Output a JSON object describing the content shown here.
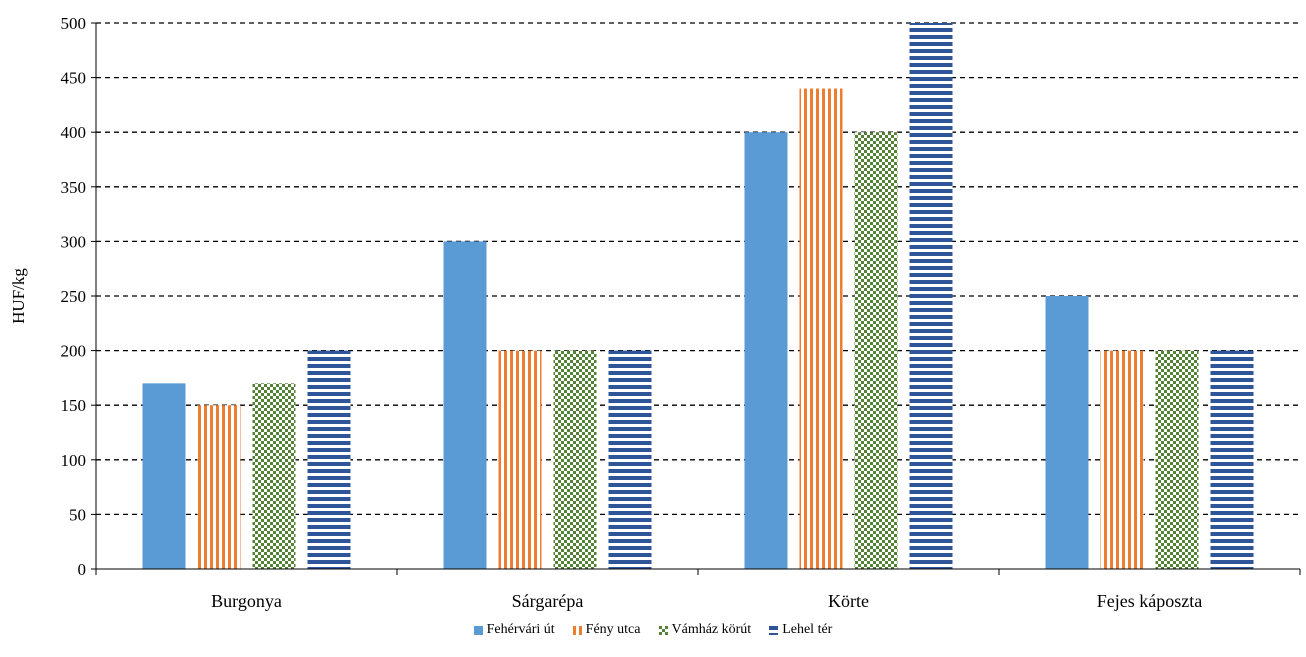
{
  "chart_data": {
    "type": "bar",
    "ylabel": "HUF/kg",
    "xlabel": "",
    "ylim": [
      0,
      500
    ],
    "yticks": [
      0,
      50,
      100,
      150,
      200,
      250,
      300,
      350,
      400,
      450,
      500
    ],
    "grid": true,
    "grid_style": "dashed",
    "legend_position": "bottom",
    "categories": [
      "Burgonya",
      "Sárgarépa",
      "Körte",
      "Fejes káposzta"
    ],
    "series": [
      {
        "name": "Fehérvári út",
        "values": [
          170,
          300,
          400,
          250
        ],
        "color": "#5b9bd5",
        "pattern": "solid"
      },
      {
        "name": "Fény utca",
        "values": [
          150,
          200,
          440,
          200
        ],
        "color": "#ed7d31",
        "pattern": "vertical-stripes"
      },
      {
        "name": "Vámház körút",
        "values": [
          170,
          200,
          400,
          200
        ],
        "color": "#548235",
        "pattern": "checker"
      },
      {
        "name": "Lehel tér",
        "values": [
          200,
          200,
          500,
          200
        ],
        "color": "#2e5597",
        "pattern": "horizontal-stripes"
      }
    ]
  }
}
